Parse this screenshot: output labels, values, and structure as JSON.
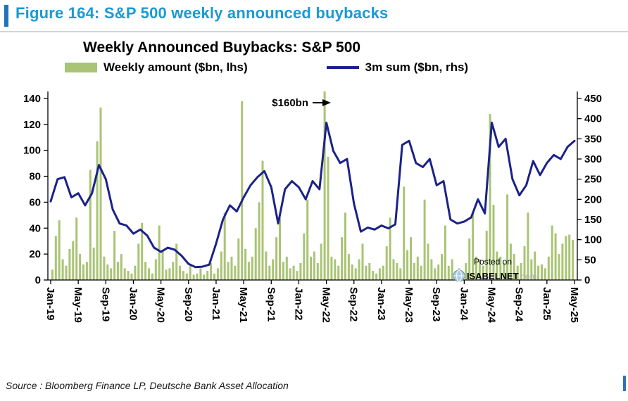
{
  "page": {
    "caption": "Figure 164: S&P 500 weekly announced buybacks",
    "source": "Source : Bloomberg Finance LP, Deutsche Bank Asset Allocation"
  },
  "watermark": {
    "posted_on": "Posted on",
    "brand": "ISABELNET",
    "domain_suffix": ".com"
  },
  "colors": {
    "caption": "#1a9ad5",
    "caption_bar": "#1e74b8",
    "divider": "#ccd6da",
    "bar_series": "#a9c474",
    "line_series": "#1b2288",
    "watermark_gray": "#8f9499",
    "watermark_brand": "#85898d",
    "watermark_suffix": "#b3b6ba",
    "source_marker": "#2e75b6",
    "axis": "#000000"
  },
  "chart_data": {
    "type": "bar+line",
    "title": "Weekly Announced Buybacks: S&P 500",
    "grid": false,
    "legend_position": "top",
    "legend": [
      {
        "label": "Weekly amount ($bn, lhs)",
        "type": "bar",
        "color": "#a9c474"
      },
      {
        "label": "3m sum ($bn, rhs)",
        "type": "line",
        "color": "#1b2288"
      }
    ],
    "annotation": {
      "label": "$160bn",
      "arrow": "→"
    },
    "x_axis": {
      "tick_labels": [
        "Jan-19",
        "May-19",
        "Sep-19",
        "Jan-20",
        "May-20",
        "Sep-20",
        "Jan-21",
        "May-21",
        "Sep-21",
        "Jan-22",
        "May-22",
        "Sep-22",
        "Jan-23",
        "May-23",
        "Sep-23",
        "Jan-24",
        "May-24",
        "Sep-24",
        "Jan-25",
        "May-25"
      ],
      "months_span": 76,
      "labeled_every_n_months": 4
    },
    "left_axis": {
      "ticks": [
        0,
        20,
        40,
        60,
        80,
        100,
        120,
        140
      ],
      "range": [
        0,
        140
      ]
    },
    "right_axis": {
      "ticks": [
        0,
        50,
        100,
        150,
        200,
        250,
        300,
        350,
        400,
        450
      ],
      "range": [
        0,
        450
      ]
    },
    "series": [
      {
        "name": "Weekly amount ($bn, lhs)",
        "type": "bar",
        "axis": "left",
        "cadence": "biweekly",
        "start": "Jan-19",
        "values": [
          8,
          34,
          46,
          16,
          11,
          24,
          30,
          48,
          20,
          12,
          14,
          85,
          25,
          107,
          133,
          18,
          12,
          9,
          38,
          14,
          20,
          9,
          7,
          5,
          11,
          28,
          44,
          14,
          9,
          5,
          16,
          42,
          23,
          8,
          9,
          14,
          28,
          11,
          7,
          5,
          11,
          4,
          5,
          9,
          4,
          7,
          13,
          5,
          9,
          22,
          52,
          14,
          18,
          11,
          32,
          138,
          24,
          14,
          18,
          40,
          60,
          92,
          22,
          11,
          16,
          33,
          48,
          14,
          18,
          9,
          11,
          7,
          13,
          36,
          62,
          18,
          22,
          13,
          28,
          160,
          95,
          18,
          16,
          11,
          33,
          52,
          20,
          12,
          9,
          16,
          28,
          11,
          13,
          7,
          5,
          9,
          11,
          26,
          48,
          16,
          13,
          9,
          72,
          23,
          33,
          13,
          18,
          11,
          62,
          28,
          16,
          9,
          12,
          20,
          42,
          11,
          16,
          7,
          9,
          5,
          13,
          32,
          52,
          18,
          16,
          11,
          38,
          128,
          58,
          22,
          18,
          13,
          66,
          28,
          20,
          11,
          13,
          26,
          52,
          16,
          22,
          11,
          12,
          9,
          18,
          42,
          36,
          20,
          28,
          34,
          35,
          31
        ]
      },
      {
        "name": "3m sum ($bn, rhs)",
        "type": "line",
        "axis": "right",
        "cadence": "monthly",
        "start": "Jan-19",
        "values": [
          195,
          250,
          255,
          205,
          215,
          185,
          215,
          285,
          250,
          175,
          140,
          135,
          115,
          125,
          110,
          80,
          70,
          80,
          75,
          60,
          40,
          32,
          33,
          38,
          90,
          150,
          185,
          170,
          205,
          235,
          255,
          270,
          230,
          140,
          225,
          245,
          230,
          200,
          245,
          225,
          390,
          320,
          290,
          300,
          190,
          120,
          130,
          125,
          135,
          128,
          138,
          335,
          345,
          290,
          280,
          300,
          235,
          245,
          150,
          140,
          145,
          155,
          200,
          165,
          390,
          330,
          350,
          250,
          210,
          235,
          295,
          260,
          290,
          310,
          300,
          330,
          345
        ]
      }
    ]
  }
}
